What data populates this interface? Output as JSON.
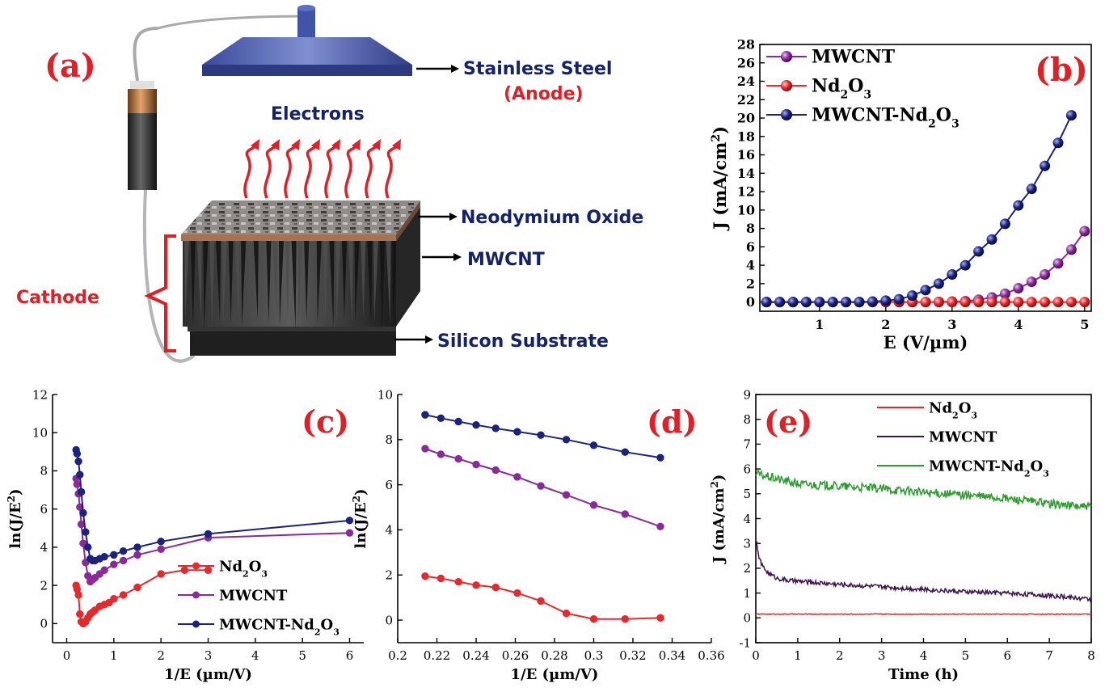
{
  "schematic": {
    "panel_label": "(a)",
    "anode_line1": "Stainless Steel",
    "anode_line2": "(Anode)",
    "electrons": "Electrons",
    "layer_top": "Neodymium Oxide",
    "layer_mid": "MWCNT",
    "layer_bottom": "Silicon Substrate",
    "cathode": "Cathode"
  },
  "colors": {
    "nd2o3": "#e8282a",
    "mwcnt": "#8a2a9a",
    "hybrid": "#1a237e",
    "mwcnt_e": "#3d1350",
    "hybrid_e": "#2e9b2e",
    "label_red": "#e31e24",
    "navy": "#13236b"
  },
  "chart_data": [
    {
      "id": "b",
      "panel_label": "(b)",
      "type": "line",
      "xlabel": "E (V/µm)",
      "ylabel": "J (mA/cm",
      "ylabel_sup": "2",
      "ylabel_close": ")",
      "xlim": [
        0.1,
        5.1
      ],
      "ylim": [
        -1,
        28
      ],
      "xticks": [
        1,
        2,
        3,
        4,
        5
      ],
      "yticks": [
        0,
        2,
        4,
        6,
        8,
        10,
        12,
        14,
        16,
        18,
        20,
        22,
        24,
        26,
        28
      ],
      "legend": [
        {
          "base": "MWCNT",
          "parts": [],
          "color": "mwcnt"
        },
        {
          "base": "Nd",
          "parts": [
            "2",
            "O",
            "3"
          ],
          "color": "nd2o3"
        },
        {
          "base": "MWCNT-Nd",
          "parts": [
            "2",
            "O",
            "3"
          ],
          "color": "hybrid"
        }
      ],
      "series": [
        {
          "name": "MWCNT",
          "color": "mwcnt",
          "x": [
            0.2,
            0.4,
            0.6,
            0.8,
            1.0,
            1.2,
            1.4,
            1.6,
            1.8,
            2.0,
            2.2,
            2.4,
            2.6,
            2.8,
            3.0,
            3.2,
            3.4,
            3.6,
            3.8,
            4.0,
            4.2,
            4.4,
            4.6,
            4.8,
            5.0
          ],
          "y": [
            0,
            0,
            0,
            0,
            0,
            0,
            0,
            0,
            0,
            0,
            0,
            0,
            0,
            0.02,
            0.05,
            0.1,
            0.25,
            0.5,
            0.9,
            1.5,
            2.2,
            3.0,
            4.2,
            5.7,
            7.7
          ]
        },
        {
          "name": "Nd2O3",
          "color": "nd2o3",
          "x": [
            0.2,
            0.4,
            0.6,
            0.8,
            1.0,
            1.2,
            1.4,
            1.6,
            1.8,
            2.0,
            2.2,
            2.4,
            2.6,
            2.8,
            3.0,
            3.2,
            3.4,
            3.6,
            3.8,
            4.0,
            4.2,
            4.4,
            4.6,
            4.8,
            5.0
          ],
          "y": [
            0,
            0,
            0,
            0,
            0,
            0,
            0,
            0,
            0,
            0,
            0,
            0,
            0,
            0,
            0,
            0,
            0,
            0,
            0,
            0,
            0,
            0,
            0,
            0,
            0
          ]
        },
        {
          "name": "MWCNT-Nd2O3",
          "color": "hybrid",
          "x": [
            0.2,
            0.4,
            0.6,
            0.8,
            1.0,
            1.2,
            1.4,
            1.6,
            1.8,
            2.0,
            2.2,
            2.4,
            2.6,
            2.8,
            3.0,
            3.2,
            3.4,
            3.6,
            3.8,
            4.0,
            4.2,
            4.4,
            4.6,
            4.8,
            5.0
          ],
          "y": [
            0,
            0,
            0,
            0,
            0,
            0,
            0,
            0,
            0.05,
            0.15,
            0.3,
            0.7,
            1.3,
            2.0,
            3.0,
            4.0,
            5.5,
            6.8,
            8.5,
            10.5,
            12.3,
            14.8,
            17.3,
            20.3,
            null
          ]
        }
      ]
    },
    {
      "id": "c",
      "panel_label": "(c)",
      "type": "line",
      "xlabel": "1/E (µm/V)",
      "ylabel": "ln(J/E",
      "ylabel_sup": "2",
      "ylabel_close": ")",
      "xlim": [
        -0.3,
        6.3
      ],
      "ylim": [
        -1,
        12
      ],
      "xticks": [
        0,
        1,
        2,
        3,
        4,
        5,
        6
      ],
      "yticks": [
        0,
        2,
        4,
        6,
        8,
        10,
        12
      ],
      "legend": [
        {
          "base": "Nd",
          "parts": [
            "2",
            "O",
            "3"
          ],
          "color": "nd2o3"
        },
        {
          "base": "MWCNT",
          "parts": [],
          "color": "mwcnt"
        },
        {
          "base": "MWCNT-Nd",
          "parts": [
            "2",
            "O",
            "3"
          ],
          "color": "hybrid"
        }
      ],
      "series": [
        {
          "name": "Nd2O3",
          "color": "nd2o3",
          "x": [
            0.2,
            0.22,
            0.25,
            0.28,
            0.31,
            0.35,
            0.4,
            0.45,
            0.5,
            0.55,
            0.6,
            0.7,
            0.8,
            0.9,
            1.0,
            1.2,
            1.5,
            2.0,
            2.5,
            3.0
          ],
          "y": [
            2.0,
            1.8,
            1.5,
            0.5,
            0.1,
            0.0,
            0.1,
            0.3,
            0.5,
            0.6,
            0.7,
            0.9,
            1.0,
            1.1,
            1.3,
            1.5,
            1.9,
            2.6,
            2.8,
            2.8
          ]
        },
        {
          "name": "MWCNT",
          "color": "mwcnt",
          "x": [
            0.2,
            0.22,
            0.25,
            0.28,
            0.31,
            0.35,
            0.4,
            0.45,
            0.5,
            0.55,
            0.6,
            0.7,
            0.8,
            1.0,
            1.2,
            1.5,
            2.0,
            3.0,
            6.0
          ],
          "y": [
            7.6,
            7.3,
            6.8,
            6.1,
            5.2,
            4.2,
            3.2,
            2.5,
            2.2,
            2.3,
            2.4,
            2.6,
            2.8,
            3.1,
            3.3,
            3.6,
            3.9,
            4.5,
            4.75
          ]
        },
        {
          "name": "MWCNT-Nd2O3",
          "color": "hybrid",
          "x": [
            0.2,
            0.22,
            0.25,
            0.28,
            0.31,
            0.35,
            0.4,
            0.45,
            0.5,
            0.55,
            0.6,
            0.7,
            0.8,
            1.0,
            1.2,
            1.5,
            2.0,
            3.0,
            6.0
          ],
          "y": [
            9.1,
            8.9,
            8.5,
            7.8,
            6.9,
            5.8,
            4.8,
            4.0,
            3.4,
            3.3,
            3.3,
            3.4,
            3.5,
            3.6,
            3.8,
            4.0,
            4.3,
            4.7,
            5.4
          ]
        }
      ]
    },
    {
      "id": "d",
      "panel_label": "(d)",
      "type": "line",
      "xlabel": "1/E (µm/V)",
      "ylabel": "ln(J/E",
      "ylabel_sup": "2",
      "ylabel_close": ")",
      "xlim": [
        0.2,
        0.36
      ],
      "ylim": [
        -1,
        10
      ],
      "xticks": [
        0.2,
        0.22,
        0.24,
        0.26,
        0.28,
        0.3,
        0.32,
        0.34,
        0.36
      ],
      "yticks": [
        0,
        2,
        4,
        6,
        8,
        10
      ],
      "series": [
        {
          "name": "MWCNT-Nd2O3",
          "color": "hybrid",
          "x": [
            0.214,
            0.222,
            0.231,
            0.24,
            0.25,
            0.261,
            0.273,
            0.286,
            0.3,
            0.316,
            0.334
          ],
          "y": [
            9.1,
            8.95,
            8.8,
            8.65,
            8.5,
            8.35,
            8.2,
            8.0,
            7.75,
            7.45,
            7.2
          ]
        },
        {
          "name": "MWCNT",
          "color": "mwcnt",
          "x": [
            0.214,
            0.222,
            0.231,
            0.24,
            0.25,
            0.261,
            0.273,
            0.286,
            0.3,
            0.316,
            0.334
          ],
          "y": [
            7.6,
            7.35,
            7.15,
            6.9,
            6.65,
            6.35,
            5.95,
            5.55,
            5.1,
            4.7,
            4.15
          ]
        },
        {
          "name": "Nd2O3",
          "color": "nd2o3",
          "x": [
            0.214,
            0.222,
            0.231,
            0.24,
            0.25,
            0.261,
            0.273,
            0.286,
            0.3,
            0.316,
            0.334
          ],
          "y": [
            1.95,
            1.85,
            1.7,
            1.55,
            1.45,
            1.2,
            0.85,
            0.3,
            0.05,
            0.05,
            0.1
          ]
        }
      ]
    },
    {
      "id": "e",
      "panel_label": "(e)",
      "type": "line",
      "xlabel": "Time (h)",
      "ylabel": "J (mA/cm",
      "ylabel_sup": "2",
      "ylabel_close": ")",
      "xlim": [
        0,
        8
      ],
      "ylim": [
        -1,
        9
      ],
      "xticks": [
        0,
        1,
        2,
        3,
        4,
        5,
        6,
        7,
        8
      ],
      "yticks": [
        -1,
        0,
        1,
        2,
        3,
        4,
        5,
        6,
        7,
        8,
        9
      ],
      "legend": [
        {
          "base": "Nd",
          "parts": [
            "2",
            "O",
            "3"
          ],
          "color": "nd2o3"
        },
        {
          "base": "MWCNT",
          "parts": [],
          "color": "mwcnt_e"
        },
        {
          "base": "MWCNT-Nd",
          "parts": [
            "2",
            "O",
            "3"
          ],
          "color": "hybrid_e"
        }
      ],
      "series": [
        {
          "name": "Nd2O3",
          "color": "nd2o3",
          "x": [
            0,
            1,
            2,
            3,
            4,
            5,
            6,
            7,
            8
          ],
          "y": [
            0.15,
            0.15,
            0.15,
            0.15,
            0.15,
            0.15,
            0.15,
            0.15,
            0.15
          ]
        },
        {
          "name": "MWCNT",
          "color": "mwcnt_e",
          "x": [
            0,
            0.05,
            0.15,
            0.3,
            0.5,
            0.8,
            1.2,
            2,
            3,
            4,
            5,
            6,
            7,
            8
          ],
          "y": [
            3.2,
            2.6,
            2.1,
            1.8,
            1.6,
            1.5,
            1.45,
            1.35,
            1.25,
            1.15,
            1.05,
            1.0,
            0.9,
            0.75
          ]
        },
        {
          "name": "MWCNT-Nd2O3",
          "color": "hybrid_e",
          "x": [
            0,
            0.5,
            1,
            2,
            3,
            4,
            5,
            6,
            7,
            8
          ],
          "y": [
            5.8,
            5.6,
            5.4,
            5.3,
            5.2,
            5.05,
            4.95,
            4.8,
            4.6,
            4.45
          ]
        }
      ]
    }
  ]
}
